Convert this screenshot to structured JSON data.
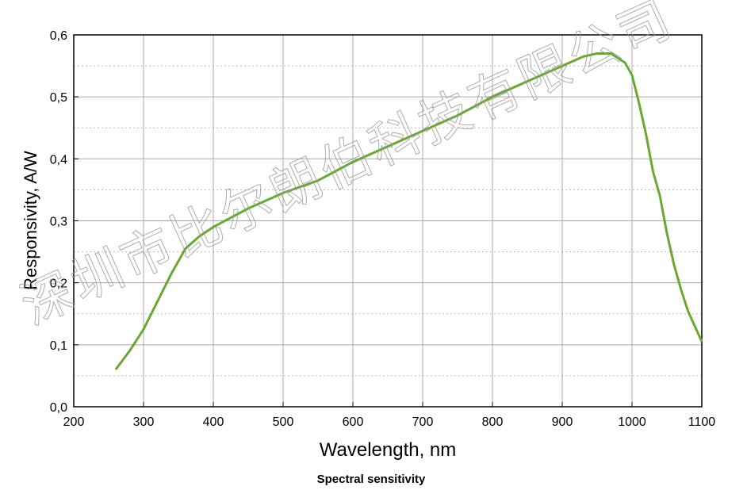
{
  "chart_data": {
    "type": "line",
    "title": "Spectral sensitivity",
    "x_label": "Wavelength, nm",
    "y_label": "Responsivity, A/W",
    "watermark": "深圳市比尔朗伯科技有限公司",
    "x": [
      260,
      280,
      300,
      320,
      340,
      360,
      380,
      400,
      450,
      500,
      550,
      600,
      650,
      700,
      750,
      800,
      850,
      900,
      930,
      950,
      970,
      990,
      1000,
      1010,
      1020,
      1030,
      1040,
      1050,
      1060,
      1070,
      1080,
      1090,
      1100
    ],
    "series": [
      {
        "color": "#6aa832",
        "values": [
          0.06,
          0.09,
          0.125,
          0.17,
          0.215,
          0.255,
          0.275,
          0.29,
          0.32,
          0.345,
          0.365,
          0.395,
          0.42,
          0.445,
          0.47,
          0.5,
          0.525,
          0.55,
          0.565,
          0.57,
          0.57,
          0.555,
          0.535,
          0.49,
          0.44,
          0.38,
          0.34,
          0.28,
          0.23,
          0.19,
          0.155,
          0.13,
          0.105
        ]
      }
    ],
    "xlim": [
      200,
      1100
    ],
    "ylim": [
      0,
      0.6
    ],
    "xticks": [
      200,
      300,
      400,
      500,
      600,
      700,
      800,
      900,
      1000,
      1100
    ],
    "yticks": [
      {
        "value": 0,
        "label": "0,0"
      },
      {
        "value": 0.1,
        "label": "0,1"
      },
      {
        "value": 0.2,
        "label": "0,2"
      },
      {
        "value": 0.3,
        "label": "0,3"
      },
      {
        "value": 0.4,
        "label": "0,4"
      },
      {
        "value": 0.5,
        "label": "0,5"
      },
      {
        "value": 0.6,
        "label": "0,6"
      }
    ],
    "grid": true
  }
}
